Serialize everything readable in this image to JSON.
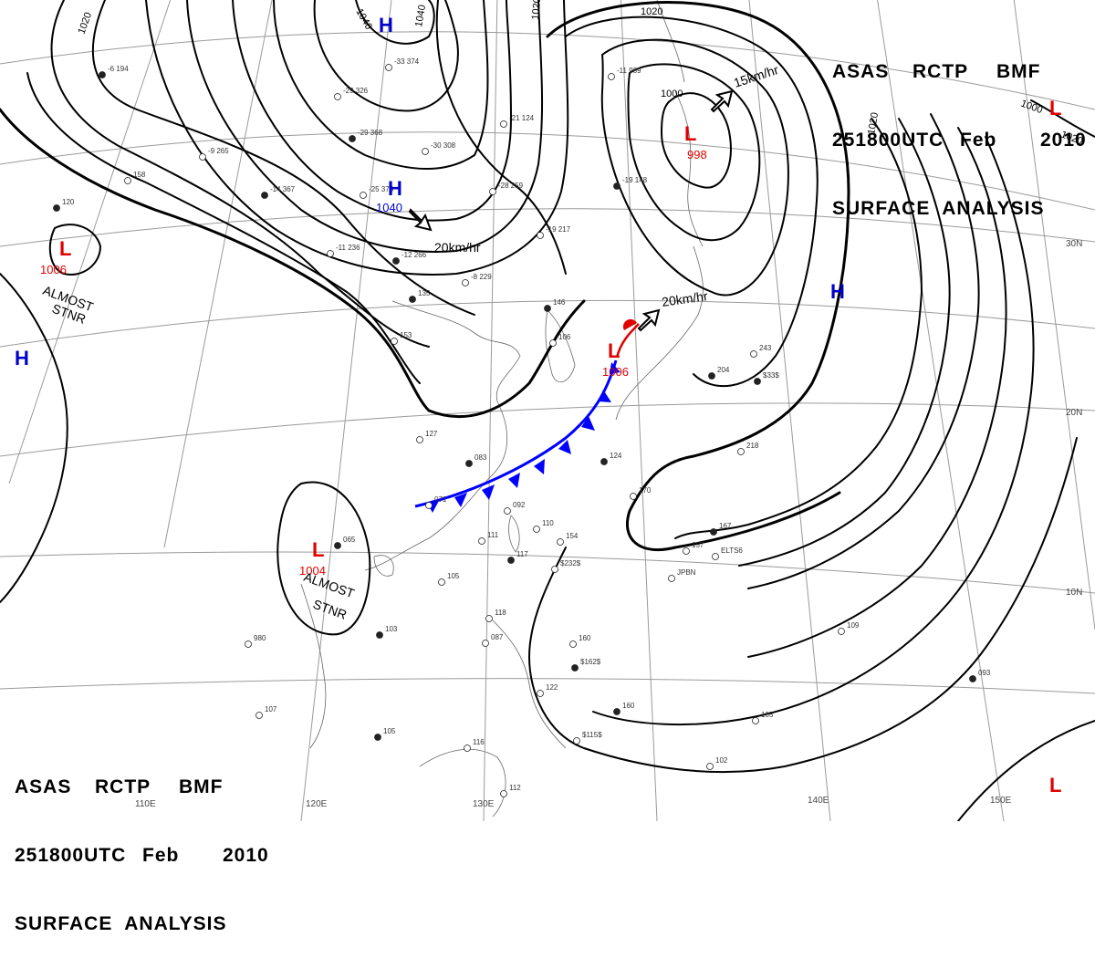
{
  "title": {
    "line1": [
      "ASAS",
      "RCTP",
      "BMF"
    ],
    "line2": [
      "251800UTC",
      "Feb",
      "2010"
    ],
    "line3": "SURFACE  ANALYSIS"
  },
  "grid_labels": {
    "lon": [
      "110E",
      "120E",
      "130E",
      "140E",
      "150E"
    ],
    "lat": [
      "30N",
      "20N",
      "10N"
    ]
  },
  "isobar_labels": [
    "1020",
    "1020",
    "1040",
    "1040",
    "1020",
    "1020",
    "1000",
    "1020",
    "1000"
  ],
  "pressure_centers": [
    {
      "type": "L",
      "value": "998",
      "color": "#e00000"
    },
    {
      "type": "L",
      "value": "1006",
      "color": "#e00000"
    },
    {
      "type": "L",
      "value": "1006",
      "color": "#e00000"
    },
    {
      "type": "L",
      "value": "1004",
      "color": "#e00000"
    },
    {
      "type": "L",
      "value": "",
      "color": "#e00000"
    },
    {
      "type": "L",
      "value": "",
      "color": "#e00000"
    },
    {
      "type": "H",
      "value": "1040",
      "color": "#0000cc"
    },
    {
      "type": "H",
      "value": "",
      "color": "#0000cc"
    },
    {
      "type": "H",
      "value": "",
      "color": "#0000cc"
    },
    {
      "type": "H",
      "value": "",
      "color": "#0000cc"
    }
  ],
  "motion_labels": [
    "20km/hr",
    "15km/hr",
    "20km/hr"
  ],
  "stationary_labels": [
    {
      "line1": "ALMOST",
      "line2": "STNR"
    },
    {
      "line1": "ALMOST",
      "line2": "STNR"
    }
  ],
  "observations": [
    "-6 194",
    "-33 374",
    "-29 326",
    "-29 368",
    "-9 265",
    "-30 308",
    "-14 367",
    "-25 378",
    "-11 236",
    "-12 266",
    "-21 124",
    "-11 989",
    "-19 148",
    "-28 259",
    "-19 217",
    "135",
    "-8 229",
    "153",
    "146",
    "106",
    "127",
    "083",
    "071",
    "092",
    "065",
    "105",
    "111",
    "117",
    "154",
    "110",
    "124",
    "170",
    "157",
    "167",
    "218",
    "243",
    "204",
    "118",
    "087",
    "103",
    "160",
    "122",
    "105",
    "116",
    "112",
    "160",
    "105",
    "102",
    "093",
    "109",
    "158",
    "120",
    "980",
    "107",
    "$162$",
    "$115$",
    "$232$",
    "$33$",
    "JPBN",
    "ELTS6"
  ],
  "colors": {
    "isobar": "#000000",
    "low": "#e00000",
    "high": "#0000cc",
    "cold_front": "#0000ff",
    "coast": "#666666",
    "grid": "#9a9a9a"
  }
}
